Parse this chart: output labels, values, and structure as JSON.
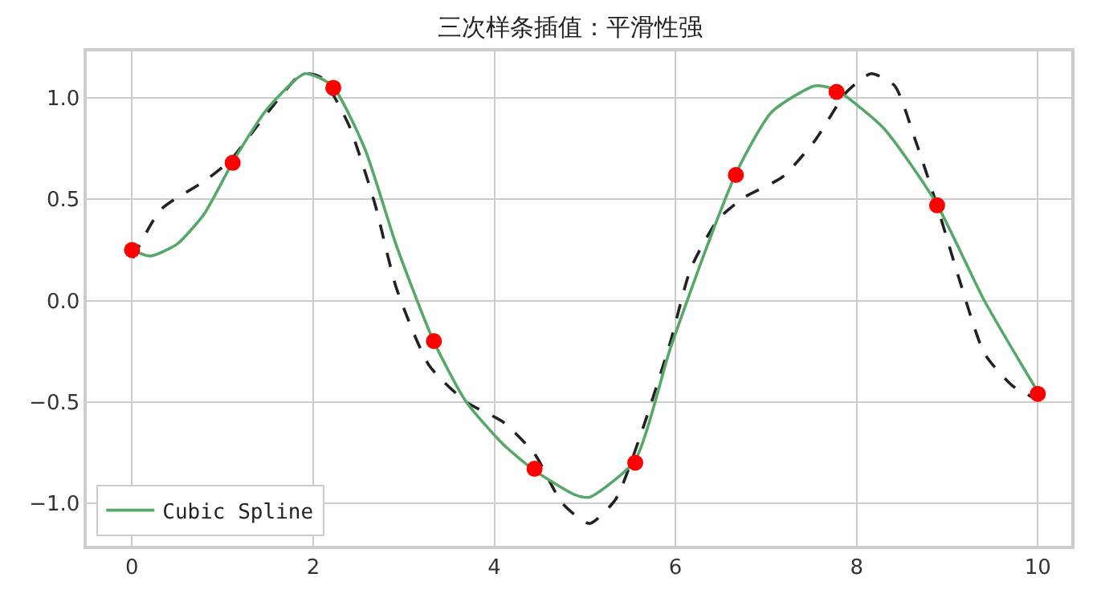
{
  "chart_data": {
    "type": "line",
    "title": "三次样条插值：平滑性强",
    "xlim": [
      -0.5,
      10.37
    ],
    "ylim": [
      -1.21,
      1.23
    ],
    "xticks": [
      0,
      2,
      4,
      6,
      8,
      10
    ],
    "yticks": [
      {
        "value": -1,
        "label": "−1.0"
      },
      {
        "value": -0.5,
        "label": "−0.5"
      },
      {
        "value": 0,
        "label": "0.0"
      },
      {
        "value": 0.5,
        "label": "0.5"
      },
      {
        "value": 1,
        "label": "1.0"
      }
    ],
    "grid": true,
    "legend": "bottom left",
    "series": [
      {
        "color": "#222222",
        "line_style": "dashed",
        "marker": "none",
        "x": [
          0.01,
          0.32,
          0.8,
          1.08,
          1.5,
          1.88,
          2.09,
          2.39,
          2.68,
          2.92,
          3.28,
          3.69,
          4.1,
          4.45,
          4.75,
          5.05,
          5.34,
          5.64,
          5.94,
          6.17,
          6.47,
          6.76,
          7.18,
          7.54,
          7.89,
          8.16,
          8.42,
          8.65,
          8.88,
          9.13,
          9.41,
          9.72,
          10.0
        ],
        "values": [
          0.21,
          0.45,
          0.59,
          0.69,
          0.93,
          1.12,
          1.1,
          0.87,
          0.48,
          0.06,
          -0.32,
          -0.5,
          -0.6,
          -0.76,
          -1.0,
          -1.1,
          -0.98,
          -0.63,
          -0.21,
          0.16,
          0.4,
          0.51,
          0.61,
          0.79,
          1.03,
          1.12,
          1.06,
          0.79,
          0.48,
          0.11,
          -0.26,
          -0.42,
          -0.49
        ]
      },
      {
        "name": "Cubic Spline",
        "color": "#55a868",
        "line_style": "solid",
        "marker": "none",
        "x": [
          0,
          0.2,
          0.5,
          0.8,
          1.12,
          1.5,
          1.91,
          2.21,
          2.57,
          2.92,
          3.33,
          3.69,
          4.1,
          4.45,
          4.9,
          5.05,
          5.55,
          5.94,
          6.35,
          6.67,
          7.06,
          7.54,
          7.77,
          8.3,
          8.88,
          9.41,
          10
        ],
        "values": [
          0.25,
          0.22,
          0.28,
          0.43,
          0.69,
          0.95,
          1.12,
          1.06,
          0.75,
          0.27,
          -0.2,
          -0.5,
          -0.71,
          -0.84,
          -0.96,
          -0.97,
          -0.79,
          -0.24,
          0.27,
          0.63,
          0.93,
          1.06,
          1.04,
          0.85,
          0.48,
          0.0,
          -0.45
        ]
      },
      {
        "type": "scatter",
        "color": "#ff0000",
        "marker": "circle",
        "x": [
          0,
          1.111,
          2.222,
          3.333,
          4.444,
          5.556,
          6.667,
          7.778,
          8.889,
          10
        ],
        "values": [
          0.25,
          0.68,
          1.05,
          -0.2,
          -0.83,
          -0.8,
          0.62,
          1.03,
          0.47,
          -0.46
        ]
      }
    ]
  }
}
